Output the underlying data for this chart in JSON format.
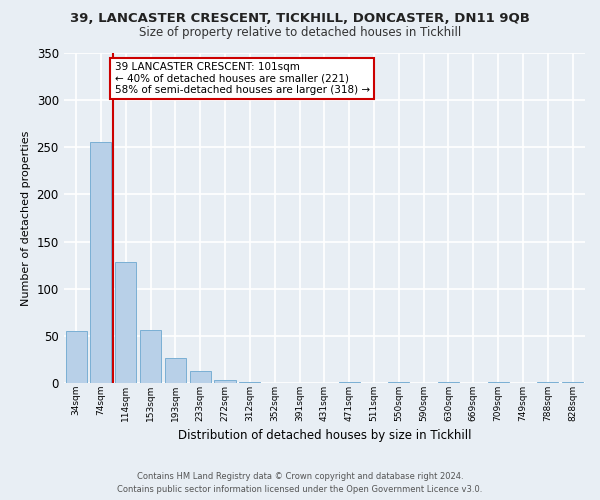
{
  "title": "39, LANCASTER CRESCENT, TICKHILL, DONCASTER, DN11 9QB",
  "subtitle": "Size of property relative to detached houses in Tickhill",
  "xlabel": "Distribution of detached houses by size in Tickhill",
  "ylabel": "Number of detached properties",
  "bar_labels": [
    "34sqm",
    "74sqm",
    "114sqm",
    "153sqm",
    "193sqm",
    "233sqm",
    "272sqm",
    "312sqm",
    "352sqm",
    "391sqm",
    "431sqm",
    "471sqm",
    "511sqm",
    "550sqm",
    "590sqm",
    "630sqm",
    "669sqm",
    "709sqm",
    "749sqm",
    "788sqm",
    "828sqm"
  ],
  "bar_values": [
    55,
    255,
    128,
    57,
    27,
    13,
    4,
    1,
    0,
    0,
    0,
    2,
    0,
    1,
    0,
    1,
    0,
    1,
    0,
    1,
    1
  ],
  "bar_color": "#b8d0e8",
  "bar_edgecolor": "#7aafd4",
  "ylim": [
    0,
    350
  ],
  "yticks": [
    0,
    50,
    100,
    150,
    200,
    250,
    300,
    350
  ],
  "vline_color": "#cc0000",
  "annotation_text": "39 LANCASTER CRESCENT: 101sqm\n← 40% of detached houses are smaller (221)\n58% of semi-detached houses are larger (318) →",
  "annotation_box_color": "#ffffff",
  "annotation_box_edgecolor": "#cc0000",
  "footer_line1": "Contains HM Land Registry data © Crown copyright and database right 2024.",
  "footer_line2": "Contains public sector information licensed under the Open Government Licence v3.0.",
  "background_color": "#e8eef4",
  "grid_color": "#ffffff",
  "num_bins": 21
}
